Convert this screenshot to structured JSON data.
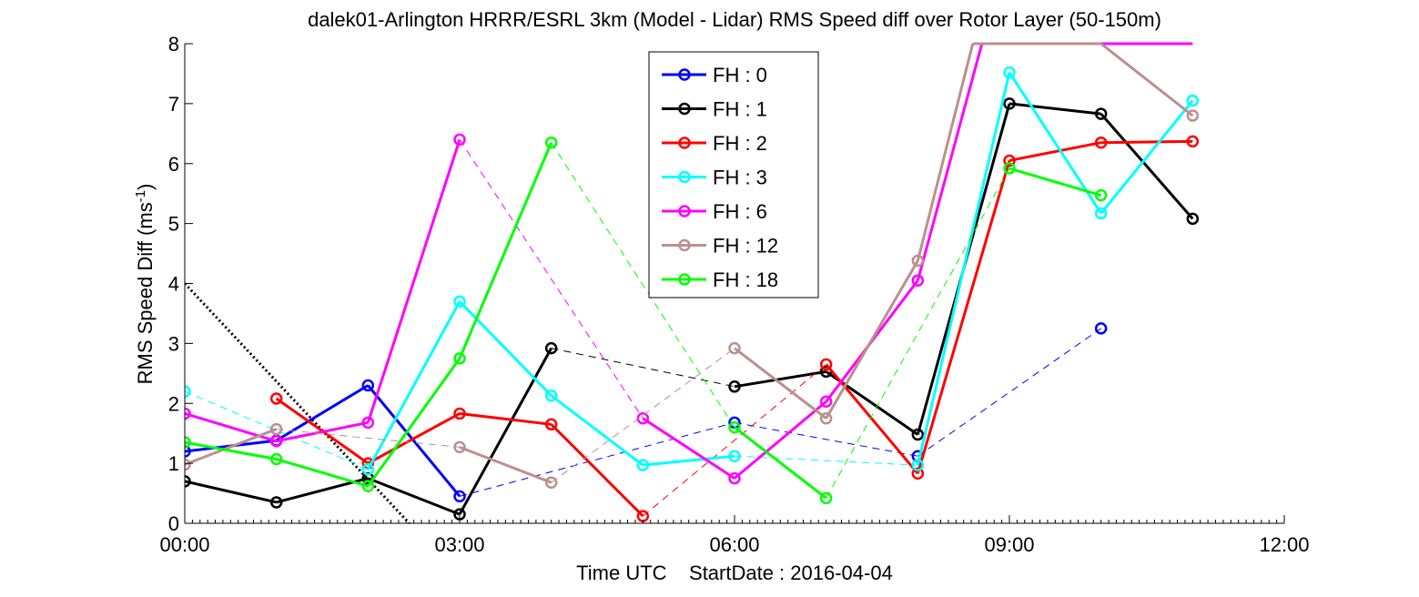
{
  "chart_data": {
    "type": "line",
    "title": "dalek01-Arlington HRRR/ESRL 3km (Model - Lidar) RMS Speed diff over Rotor Layer (50-150m)",
    "xlabel": "Time UTC    StartDate : 2016-04-04",
    "ylabel": "RMS Speed Diff (ms",
    "ylabel_sup": "-1",
    "ylabel_end": ")",
    "xlim": [
      0,
      12
    ],
    "ylim": [
      0,
      8
    ],
    "x_ticks": [
      0,
      3,
      6,
      9,
      12
    ],
    "x_tick_labels": [
      "00:00",
      "03:00",
      "06:00",
      "09:00",
      "12:00"
    ],
    "y_ticks": [
      0,
      1,
      2,
      3,
      4,
      5,
      6,
      7,
      8
    ],
    "y_tick_labels": [
      "0",
      "1",
      "2",
      "3",
      "4",
      "5",
      "6",
      "7",
      "8"
    ],
    "grid": false,
    "legend_position": "top-center",
    "black_dotted_line": [
      [
        0,
        4.0
      ],
      [
        2.45,
        0
      ]
    ],
    "series": [
      {
        "name": "FH : 0",
        "color": "#0000ff",
        "points": [
          [
            0,
            1.2
          ],
          [
            1,
            1.38
          ],
          [
            2,
            2.3
          ],
          [
            3,
            0.45
          ],
          [
            6,
            1.68
          ],
          [
            8,
            1.12
          ],
          [
            10,
            3.25
          ]
        ]
      },
      {
        "name": "FH : 1",
        "color": "#000000",
        "points": [
          [
            0,
            0.7
          ],
          [
            1,
            0.35
          ],
          [
            2,
            0.75
          ],
          [
            3,
            0.15
          ],
          [
            4,
            2.92
          ],
          [
            6,
            2.28
          ],
          [
            7,
            2.53
          ],
          [
            8,
            1.48
          ],
          [
            9,
            7.0
          ],
          [
            10,
            6.83
          ],
          [
            11,
            5.08
          ]
        ]
      },
      {
        "name": "FH : 2",
        "color": "#ff0000",
        "points": [
          [
            1,
            2.08
          ],
          [
            2,
            1.0
          ],
          [
            3,
            1.83
          ],
          [
            4,
            1.65
          ],
          [
            5,
            0.12
          ],
          [
            7,
            2.65
          ],
          [
            8,
            0.83
          ],
          [
            9,
            6.05
          ],
          [
            10,
            6.35
          ],
          [
            11,
            6.37
          ]
        ]
      },
      {
        "name": "FH : 3",
        "color": "#00ffff",
        "points": [
          [
            0,
            2.2
          ],
          [
            2,
            0.9
          ],
          [
            3,
            3.7
          ],
          [
            4,
            2.13
          ],
          [
            5,
            0.97
          ],
          [
            6,
            1.12
          ],
          [
            8,
            0.97
          ],
          [
            9,
            7.52
          ],
          [
            10,
            5.17
          ],
          [
            11,
            7.05
          ]
        ]
      },
      {
        "name": "FH : 6",
        "color": "#ff00ff",
        "points": [
          [
            0,
            1.83
          ],
          [
            1,
            1.37
          ],
          [
            2,
            1.68
          ],
          [
            3,
            6.4
          ],
          [
            5,
            1.75
          ],
          [
            6,
            0.75
          ],
          [
            7,
            2.03
          ],
          [
            8,
            4.05
          ],
          [
            8.7,
            8.0
          ],
          [
            9,
            8.0
          ],
          [
            10,
            8.0
          ],
          [
            11,
            8.0
          ]
        ]
      },
      {
        "name": "FH : 12",
        "color": "#bc8f8f",
        "points": [
          [
            0,
            0.98
          ],
          [
            1,
            1.57
          ],
          [
            3,
            1.27
          ],
          [
            4,
            0.68
          ],
          [
            6,
            2.92
          ],
          [
            7,
            1.75
          ],
          [
            8,
            4.38
          ],
          [
            8.6,
            8.0
          ],
          [
            9,
            8.0
          ],
          [
            10,
            8.0
          ],
          [
            11,
            6.8
          ]
        ]
      },
      {
        "name": "FH : 18",
        "color": "#00ff00",
        "points": [
          [
            0,
            1.35
          ],
          [
            1,
            1.07
          ],
          [
            2,
            0.62
          ],
          [
            3,
            2.75
          ],
          [
            4,
            6.35
          ],
          [
            6,
            1.6
          ],
          [
            7,
            0.42
          ],
          [
            9,
            5.92
          ],
          [
            10,
            5.47
          ]
        ]
      }
    ]
  }
}
